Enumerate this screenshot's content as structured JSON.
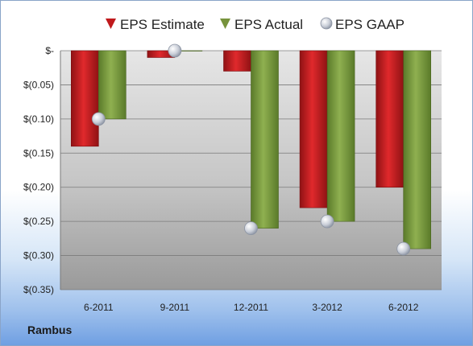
{
  "company": "Rambus",
  "chart_data": {
    "type": "bar",
    "categories": [
      "6-2011",
      "9-2011",
      "12-2011",
      "3-2012",
      "6-2012"
    ],
    "series": [
      {
        "name": "EPS Estimate",
        "kind": "bar",
        "color": "#c0191c",
        "values": [
          -0.14,
          -0.01,
          -0.03,
          -0.23,
          -0.2
        ]
      },
      {
        "name": "EPS Actual",
        "kind": "bar",
        "color": "#77933c",
        "values": [
          -0.1,
          0.0,
          -0.26,
          -0.25,
          -0.29
        ]
      },
      {
        "name": "EPS GAAP",
        "kind": "marker",
        "color": "#b8c0cc",
        "values": [
          -0.1,
          0.0,
          -0.26,
          -0.25,
          -0.29
        ]
      }
    ],
    "y_ticks": [
      {
        "value": 0,
        "label": "$-"
      },
      {
        "value": -0.05,
        "label": "$(0.05)"
      },
      {
        "value": -0.1,
        "label": "$(0.10)"
      },
      {
        "value": -0.15,
        "label": "$(0.15)"
      },
      {
        "value": -0.2,
        "label": "$(0.20)"
      },
      {
        "value": -0.25,
        "label": "$(0.25)"
      },
      {
        "value": -0.3,
        "label": "$(0.30)"
      },
      {
        "value": -0.35,
        "label": "$(0.35)"
      }
    ],
    "ylim": [
      -0.35,
      0
    ],
    "grid": true,
    "legend_position": "top"
  }
}
